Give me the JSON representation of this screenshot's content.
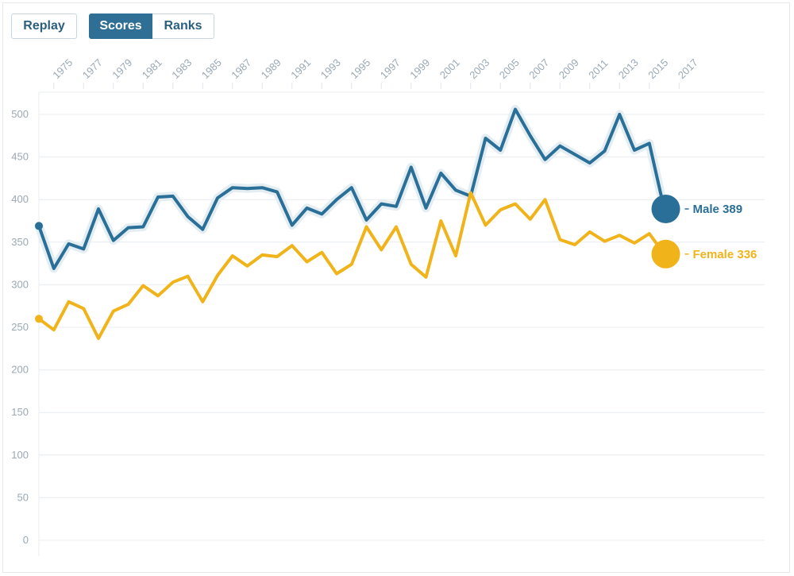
{
  "toolbar": {
    "replay_label": "Replay",
    "scores_label": "Scores",
    "ranks_label": "Ranks",
    "active": "Scores"
  },
  "colors": {
    "male": "#2a6f97",
    "female": "#f0b31a",
    "grid": "#e8ecef",
    "tick": "#9aa9b6",
    "halo": "#e3edf2"
  },
  "chart_data": {
    "type": "line",
    "title": "",
    "xlabel": "",
    "ylabel": "",
    "ylim": [
      0,
      500
    ],
    "yticks": [
      0,
      50,
      100,
      150,
      200,
      250,
      300,
      350,
      400,
      450,
      500
    ],
    "xlim": [
      1974,
      2016
    ],
    "xtick_labels": [
      1975,
      1977,
      1979,
      1981,
      1983,
      1985,
      1987,
      1989,
      1991,
      1993,
      1995,
      1997,
      1999,
      2001,
      2003,
      2005,
      2007,
      2009,
      2011,
      2013,
      2015,
      2017
    ],
    "grid": true,
    "x": [
      1974,
      1975,
      1976,
      1977,
      1978,
      1979,
      1980,
      1981,
      1982,
      1983,
      1984,
      1985,
      1986,
      1987,
      1988,
      1989,
      1990,
      1991,
      1992,
      1993,
      1994,
      1995,
      1996,
      1997,
      1998,
      1999,
      2000,
      2001,
      2002,
      2003,
      2004,
      2005,
      2006,
      2007,
      2008,
      2009,
      2010,
      2011,
      2012,
      2013,
      2014,
      2015,
      2016
    ],
    "series": [
      {
        "name": "Male",
        "end_label": "Male 389",
        "end_value": 389,
        "values": [
          369,
          319,
          348,
          342,
          389,
          352,
          367,
          368,
          403,
          404,
          380,
          365,
          402,
          414,
          413,
          414,
          409,
          370,
          390,
          383,
          400,
          414,
          376,
          395,
          392,
          438,
          390,
          431,
          411,
          404,
          472,
          458,
          506,
          475,
          447,
          463,
          453,
          443,
          457,
          500,
          458,
          466,
          389
        ]
      },
      {
        "name": "Female",
        "end_label": "Female 336",
        "end_value": 336,
        "values": [
          260,
          247,
          280,
          272,
          237,
          269,
          277,
          299,
          287,
          303,
          310,
          280,
          311,
          334,
          322,
          335,
          333,
          346,
          327,
          338,
          313,
          324,
          368,
          341,
          368,
          324,
          309,
          375,
          334,
          408,
          370,
          388,
          395,
          377,
          400,
          353,
          347,
          362,
          351,
          358,
          349,
          360,
          336
        ]
      }
    ]
  }
}
